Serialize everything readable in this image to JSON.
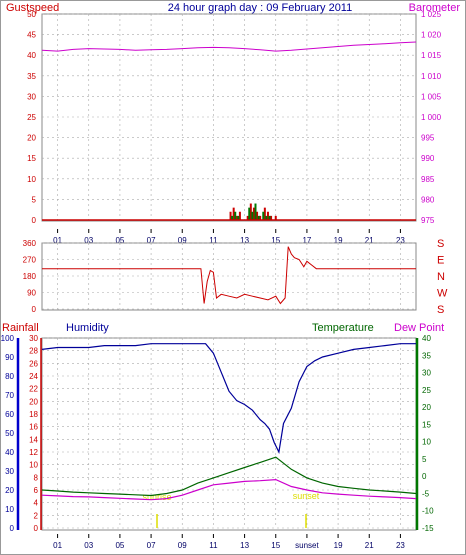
{
  "header": {
    "gustspeed_label": "Gustspeed",
    "title": "24 hour graph day : 09 February 2011",
    "barometer_label": "Barometer"
  },
  "colors": {
    "gust": "#cc0000",
    "wind": "#007700",
    "barometer": "#cc00cc",
    "direction": "#cc0000",
    "humidity": "#000099",
    "temperature": "#006600",
    "dewpoint": "#cc00cc",
    "rainfall": "#cc0000",
    "sun": "#dddd00",
    "grid": "#aaaaaa"
  },
  "x_ticks": [
    "01",
    "03",
    "05",
    "07",
    "09",
    "11",
    "13",
    "15",
    "17",
    "19",
    "21",
    "23"
  ],
  "x_ticks_bottom": [
    "01",
    "03",
    "05",
    "07",
    "09",
    "11",
    "13",
    "15",
    "sunset",
    "19",
    "21",
    "23"
  ],
  "panel_top": {
    "left_ticks": [
      "0",
      "5",
      "10",
      "15",
      "20",
      "25",
      "30",
      "35",
      "40",
      "45",
      "50"
    ],
    "right_ticks": [
      "975",
      "980",
      "985",
      "990",
      "995",
      "1 000",
      "1 005",
      "1 010",
      "1 015",
      "1 020",
      "1 025"
    ]
  },
  "panel_middle": {
    "left_ticks": [
      "0",
      "90",
      "180",
      "270",
      "360"
    ],
    "direction_letters": [
      "S",
      "E",
      "N",
      "W",
      "S"
    ]
  },
  "panel_bottom": {
    "labels": {
      "rainfall": "Rainfall",
      "humidity": "Humidity",
      "temperature": "Temperature",
      "dewpoint": "Dew Point"
    },
    "humidity_ticks": [
      "0",
      "10",
      "20",
      "30",
      "40",
      "50",
      "60",
      "70",
      "80",
      "90",
      "100"
    ],
    "rain_ticks": [
      "0",
      "2",
      "4",
      "6",
      "8",
      "10",
      "12",
      "14",
      "16",
      "18",
      "20",
      "22",
      "24",
      "26",
      "28",
      "30"
    ],
    "temp_ticks": [
      "-15",
      "-10",
      "-5",
      "0",
      "5",
      "10",
      "15",
      "20",
      "25",
      "30",
      "35",
      "40"
    ],
    "sunrise_label": "sunrise",
    "sunset_label": "sunset"
  },
  "chart_data": [
    {
      "type": "line",
      "title": "24 hour graph day : 09 February 2011",
      "x_unit": "hour",
      "y_left": {
        "label": "Gustspeed",
        "range": [
          0,
          50
        ]
      },
      "y_right": {
        "label": "Barometer",
        "range": [
          975,
          1025
        ]
      },
      "series": [
        {
          "name": "Barometer",
          "axis": "right",
          "x": [
            0,
            1,
            2,
            3,
            4,
            5,
            6,
            7,
            8,
            9,
            10,
            11,
            12,
            13,
            14,
            15,
            16,
            17,
            18,
            19,
            20,
            21,
            22,
            23,
            24
          ],
          "values": [
            1016.2,
            1016.0,
            1016.4,
            1016.6,
            1016.5,
            1016.4,
            1016.2,
            1016.3,
            1016.4,
            1016.6,
            1016.8,
            1016.9,
            1016.8,
            1016.6,
            1016.3,
            1016.0,
            1016.2,
            1016.5,
            1016.8,
            1017.1,
            1017.4,
            1017.6,
            1017.8,
            1018.0,
            1018.2
          ]
        },
        {
          "name": "Gustspeed",
          "axis": "left",
          "kind": "bars",
          "x": [
            12.1,
            12.3,
            12.5,
            12.7,
            13.2,
            13.4,
            13.6,
            13.8,
            14.0,
            14.3,
            14.5,
            14.7,
            15.0
          ],
          "values": [
            2,
            3,
            1,
            2,
            1,
            4,
            3,
            2,
            1,
            3,
            2,
            1,
            1
          ]
        },
        {
          "name": "Windspeed",
          "axis": "left",
          "kind": "bars",
          "x": [
            12.2,
            12.4,
            12.6,
            13.3,
            13.5,
            13.7,
            13.9,
            14.2,
            14.4,
            14.6
          ],
          "values": [
            1,
            2,
            1,
            3,
            2,
            4,
            1,
            2,
            1,
            1
          ]
        }
      ]
    },
    {
      "type": "line",
      "x_unit": "hour",
      "y": {
        "label": "",
        "range": [
          0,
          360
        ]
      },
      "series": [
        {
          "name": "Wind direction",
          "x": [
            0,
            10.2,
            10.4,
            10.6,
            10.8,
            11.0,
            11.2,
            11.5,
            12.0,
            12.5,
            13.0,
            13.5,
            14.0,
            14.5,
            15.0,
            15.3,
            15.6,
            15.8,
            16.0,
            16.2,
            16.5,
            16.8,
            17.0,
            17.3,
            17.6,
            18.0,
            24
          ],
          "values": [
            220,
            220,
            30,
            150,
            210,
            200,
            60,
            80,
            70,
            60,
            80,
            70,
            60,
            50,
            70,
            30,
            60,
            340,
            300,
            280,
            270,
            230,
            260,
            240,
            220,
            220,
            220
          ]
        }
      ]
    },
    {
      "type": "line",
      "x_unit": "hour",
      "y_left": {
        "label": "Humidity",
        "range": [
          0,
          100
        ]
      },
      "y_left_inner": {
        "label": "Rainfall",
        "range": [
          0,
          30
        ]
      },
      "y_right": {
        "label": "Temperature",
        "range": [
          -15,
          40
        ]
      },
      "series": [
        {
          "name": "Humidity",
          "axis": "left",
          "x": [
            0,
            1,
            2,
            3,
            4,
            5,
            6,
            7,
            8,
            9,
            10,
            10.5,
            11,
            11.5,
            12,
            12.5,
            13,
            13.5,
            14,
            14.3,
            14.6,
            14.9,
            15.2,
            15.5,
            16,
            16.5,
            17,
            17.5,
            18,
            19,
            20,
            21,
            22,
            23,
            24
          ],
          "values": [
            94,
            95,
            95,
            95,
            96,
            96,
            96,
            97,
            97,
            97,
            97,
            97,
            92,
            82,
            72,
            67,
            65,
            62,
            57,
            55,
            52,
            45,
            40,
            55,
            63,
            77,
            85,
            88,
            90,
            92,
            94,
            95,
            96,
            97,
            97
          ]
        },
        {
          "name": "Temperature",
          "axis": "right",
          "x": [
            0,
            1,
            2,
            3,
            4,
            5,
            6,
            7,
            8,
            9,
            10,
            11,
            12,
            13,
            14,
            15,
            16,
            17,
            18,
            19,
            20,
            21,
            22,
            23,
            24
          ],
          "values": [
            -4.0,
            -4.3,
            -4.6,
            -4.8,
            -5.0,
            -5.2,
            -5.4,
            -5.6,
            -5.0,
            -4.0,
            -2.0,
            -0.5,
            1.0,
            2.5,
            4.0,
            5.5,
            2.0,
            -0.5,
            -2.0,
            -3.0,
            -3.5,
            -4.0,
            -4.3,
            -4.6,
            -5.0
          ]
        },
        {
          "name": "Dew Point",
          "axis": "right",
          "x": [
            0,
            1,
            2,
            3,
            4,
            5,
            6,
            7,
            8,
            9,
            10,
            11,
            12,
            13,
            14,
            15,
            16,
            17,
            18,
            19,
            20,
            21,
            22,
            23,
            24
          ],
          "values": [
            -5.5,
            -5.7,
            -5.9,
            -6.0,
            -6.2,
            -6.4,
            -6.6,
            -6.8,
            -6.5,
            -5.5,
            -4.0,
            -2.5,
            -2.0,
            -1.5,
            -1.3,
            -1.0,
            -3.0,
            -4.0,
            -4.8,
            -5.2,
            -5.5,
            -5.8,
            -6.0,
            -6.2,
            -6.5
          ]
        },
        {
          "name": "Rainfall",
          "axis": "left_inner",
          "x": [
            0,
            24
          ],
          "values": [
            0,
            0
          ]
        }
      ]
    }
  ]
}
